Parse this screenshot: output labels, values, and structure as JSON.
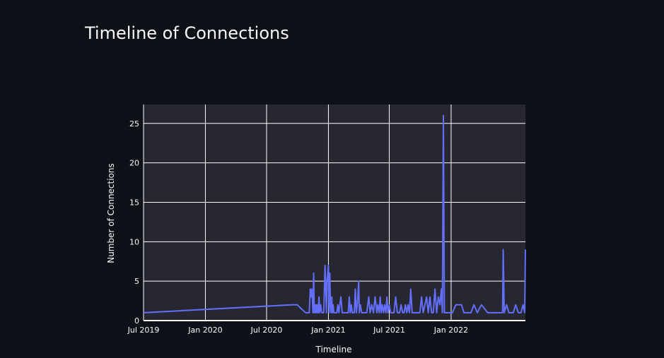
{
  "chart_data": {
    "type": "line",
    "title": "Timeline of Connections",
    "xlabel": "Timeline",
    "ylabel": "Number of Connections",
    "xlim": [
      "2019-07-01",
      "2022-08-10"
    ],
    "ylim": [
      0,
      27.4
    ],
    "x_ticks": [
      {
        "date": "2019-07-01",
        "label": "Jul 2019"
      },
      {
        "date": "2020-01-01",
        "label": "Jan 2020"
      },
      {
        "date": "2020-07-01",
        "label": "Jul 2020"
      },
      {
        "date": "2021-01-01",
        "label": "Jan 2021"
      },
      {
        "date": "2021-07-01",
        "label": "Jul 2021"
      },
      {
        "date": "2022-01-01",
        "label": "Jan 2022"
      }
    ],
    "y_ticks": [
      0,
      5,
      10,
      15,
      20,
      25
    ],
    "grid": true,
    "legend": "none",
    "colors": {
      "background": "#0e1117",
      "plot_background": "#262730",
      "grid": "#ffffff",
      "line": "#636efa",
      "text": "#fafafa"
    },
    "series": [
      {
        "x": [
          "2019-07-01",
          "2020-09-15",
          "2020-09-30",
          "2020-10-25",
          "2020-11-01",
          "2020-11-05",
          "2020-11-08",
          "2020-11-10",
          "2020-11-12",
          "2020-11-14",
          "2020-11-16",
          "2020-11-18",
          "2020-11-20",
          "2020-11-22",
          "2020-11-24",
          "2020-11-26",
          "2020-11-28",
          "2020-11-30",
          "2020-12-02",
          "2020-12-04",
          "2020-12-06",
          "2020-12-09",
          "2020-12-12",
          "2020-12-15",
          "2020-12-18",
          "2020-12-22",
          "2020-12-26",
          "2020-12-28",
          "2020-12-30",
          "2021-01-01",
          "2021-01-03",
          "2021-01-05",
          "2021-01-07",
          "2021-01-09",
          "2021-01-11",
          "2021-01-13",
          "2021-01-15",
          "2021-01-17",
          "2021-01-19",
          "2021-01-21",
          "2021-01-23",
          "2021-01-26",
          "2021-01-29",
          "2021-02-01",
          "2021-02-04",
          "2021-02-07",
          "2021-02-11",
          "2021-02-15",
          "2021-02-19",
          "2021-02-24",
          "2021-03-01",
          "2021-03-04",
          "2021-03-07",
          "2021-03-10",
          "2021-03-13",
          "2021-03-16",
          "2021-03-19",
          "2021-03-22",
          "2021-03-25",
          "2021-03-28",
          "2021-04-01",
          "2021-04-03",
          "2021-04-06",
          "2021-04-10",
          "2021-04-15",
          "2021-04-20",
          "2021-04-25",
          "2021-05-01",
          "2021-05-05",
          "2021-05-10",
          "2021-05-15",
          "2021-05-20",
          "2021-05-25",
          "2021-05-28",
          "2021-06-01",
          "2021-06-04",
          "2021-06-07",
          "2021-06-10",
          "2021-06-14",
          "2021-06-17",
          "2021-06-21",
          "2021-06-24",
          "2021-06-27",
          "2021-07-01",
          "2021-07-05",
          "2021-07-10",
          "2021-07-15",
          "2021-07-20",
          "2021-07-25",
          "2021-08-01",
          "2021-08-05",
          "2021-08-10",
          "2021-08-14",
          "2021-08-18",
          "2021-08-22",
          "2021-08-26",
          "2021-08-30",
          "2021-09-03",
          "2021-09-07",
          "2021-09-12",
          "2021-09-18",
          "2021-09-24",
          "2021-09-30",
          "2021-10-05",
          "2021-10-10",
          "2021-10-15",
          "2021-10-20",
          "2021-10-25",
          "2021-10-30",
          "2021-11-04",
          "2021-11-09",
          "2021-11-14",
          "2021-11-19",
          "2021-11-24",
          "2021-11-29",
          "2021-12-03",
          "2021-12-06",
          "2021-12-09",
          "2021-12-12",
          "2021-12-15",
          "2021-12-20",
          "2021-12-28",
          "2022-01-05",
          "2022-01-15",
          "2022-01-25",
          "2022-02-01",
          "2022-02-08",
          "2022-02-15",
          "2022-02-22",
          "2022-03-01",
          "2022-03-10",
          "2022-03-20",
          "2022-04-01",
          "2022-04-20",
          "2022-05-10",
          "2022-05-28",
          "2022-06-01",
          "2022-06-03",
          "2022-06-05",
          "2022-06-08",
          "2022-06-15",
          "2022-06-22",
          "2022-06-28",
          "2022-07-05",
          "2022-07-12",
          "2022-07-20",
          "2022-07-28",
          "2022-08-03",
          "2022-08-08",
          "2022-08-10"
        ],
        "y": [
          1,
          2,
          2,
          1,
          1,
          1,
          4,
          3,
          4,
          3,
          1,
          6,
          1,
          2,
          1,
          2,
          1,
          2,
          1,
          3,
          1,
          2,
          1,
          1,
          1,
          7,
          1,
          5,
          6,
          7,
          1,
          6,
          2,
          1,
          3,
          1,
          2,
          1,
          1,
          1,
          1,
          1,
          2,
          1,
          2,
          3,
          1,
          1,
          1,
          1,
          1,
          3,
          1,
          2,
          1,
          1,
          1,
          4,
          1,
          2,
          5,
          1,
          2,
          1,
          1,
          1,
          1,
          3,
          1,
          2,
          1,
          3,
          1,
          2,
          1,
          3,
          1,
          2,
          1,
          2,
          1,
          3,
          1,
          2,
          1,
          1,
          1,
          3,
          1,
          1,
          2,
          1,
          1,
          2,
          1,
          2,
          1,
          4,
          1,
          1,
          1,
          1,
          1,
          3,
          1,
          2,
          3,
          1,
          3,
          1,
          1,
          4,
          1,
          3,
          2,
          4,
          1,
          26,
          1,
          1,
          1,
          1,
          1,
          2,
          2,
          2,
          1,
          1,
          1,
          1,
          2,
          1,
          2,
          1,
          1,
          1,
          1,
          1,
          9,
          1,
          2,
          1,
          1,
          1,
          2,
          1,
          1,
          2,
          1,
          9
        ]
      }
    ]
  }
}
